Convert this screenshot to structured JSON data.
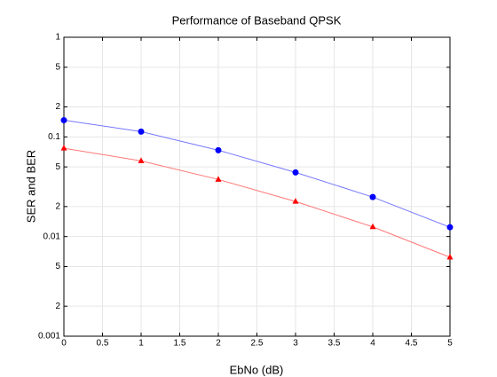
{
  "chart_data": {
    "type": "line",
    "title": "Performance of Baseband QPSK",
    "xlabel": "EbNo (dB)",
    "ylabel": "SER and BER",
    "x": [
      0,
      1,
      2,
      3,
      4,
      5
    ],
    "series": [
      {
        "color": "#0000ff",
        "line_color": "#7777ff",
        "marker": "circle",
        "values": [
          0.147,
          0.113,
          0.0735,
          0.044,
          0.0249,
          0.0124
        ]
      },
      {
        "color": "#ff0000",
        "line_color": "#ff7777",
        "marker": "triangle",
        "values": [
          0.077,
          0.0575,
          0.0374,
          0.0225,
          0.0125,
          0.0062
        ]
      }
    ],
    "xlim": [
      0,
      5
    ],
    "xticks": [
      0,
      0.5,
      1,
      1.5,
      2,
      2.5,
      3,
      3.5,
      4,
      4.5,
      5
    ],
    "ylim": [
      0.001,
      1
    ],
    "yticks": [
      1,
      {
        "value": 0.5,
        "label": "5"
      },
      {
        "value": 0.2,
        "label": "2"
      },
      0.1,
      {
        "value": 0.05,
        "label": "5"
      },
      {
        "value": 0.02,
        "label": "2"
      },
      0.01,
      {
        "value": 0.005,
        "label": "5"
      },
      {
        "value": 0.002,
        "label": "2"
      },
      0.001
    ],
    "ylog": true,
    "grid": true
  }
}
